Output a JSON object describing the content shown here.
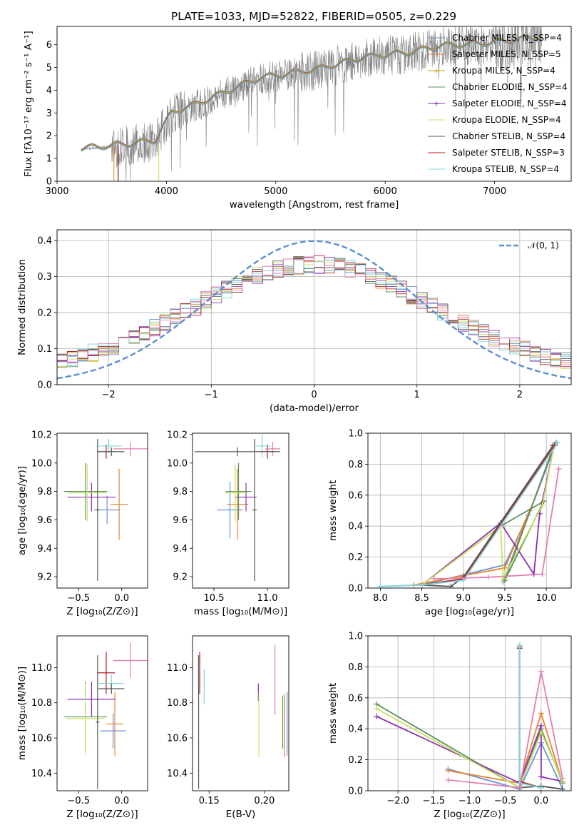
{
  "title": "PLATE=1033, MJD=52822, FIBERID=0505, z=0.229",
  "colors": [
    "#6b93d6",
    "#e9822e",
    "#c8a000",
    "#5b8f5b",
    "#8e2fb0",
    "#c8e060",
    "#555555",
    "#b22020",
    "#7fd8dc",
    "#e37fb0",
    "#808080"
  ],
  "chart_data": [
    {
      "id": "spectrum",
      "type": "line",
      "xlabel": "wavelength [Angstrom, rest frame]",
      "ylabel": "Flux [fλ10⁻¹⁷ erg cm⁻² s⁻¹ A⁻¹]",
      "xlim": [
        3000,
        7700
      ],
      "ylim": [
        0,
        6.8
      ],
      "xticks": [
        "3000",
        "4000",
        "5000",
        "6000",
        "7000"
      ],
      "yticks": [
        "0",
        "1",
        "2",
        "3",
        "4",
        "5",
        "6"
      ],
      "xtick_values": [
        3000,
        4000,
        5000,
        6000,
        7000
      ],
      "ytick_values": [
        0,
        1,
        2,
        3,
        4,
        5,
        6
      ],
      "data_range": [
        3220,
        7430
      ],
      "continuum_x": [
        3220,
        3450,
        3650,
        3900,
        3950,
        4050,
        4250,
        4500,
        4850,
        5000,
        5400,
        5800,
        6200,
        6500,
        7000,
        7400
      ],
      "continuum_y": [
        1.4,
        1.5,
        1.6,
        1.75,
        2.2,
        3.0,
        3.3,
        3.8,
        4.5,
        4.6,
        4.9,
        5.4,
        5.6,
        5.9,
        6.05,
        6.3
      ],
      "legend": [
        "Chabrier MILES, N_SSP=4",
        "Salpeter MILES, N_SSP=5",
        "Kroupa MILES, N_SSP=4",
        "Chabrier ELODIE, N_SSP=4",
        "Salpeter ELODIE, N_SSP=4",
        "Kroupa ELODIE, N_SSP=4",
        "Chabrier STELIB, N_SSP=4",
        "Salpeter STELIB, N_SSP=3",
        "Kroupa STELIB, N_SSP=4"
      ]
    },
    {
      "id": "residuals",
      "type": "line",
      "xlabel": "(data-model)/error",
      "ylabel": "Normed distribution",
      "xlim": [
        -2.5,
        2.5
      ],
      "ylim": [
        0,
        0.43
      ],
      "xticks": [
        "−2",
        "−1",
        "0",
        "1",
        "2"
      ],
      "xtick_values": [
        -2,
        -1,
        0,
        1,
        2
      ],
      "yticks": [
        "0.0",
        "0.1",
        "0.2",
        "0.3",
        "0.4"
      ],
      "ytick_values": [
        0,
        0.1,
        0.2,
        0.3,
        0.4
      ],
      "bins": {
        "start": -2.5,
        "width": 0.1,
        "count": 50
      },
      "gaussian_legend": "𝒩(0, 1)"
    },
    {
      "id": "age-z",
      "type": "scatter",
      "xlabel": "Z [log₁₀(Z/Z⊙)]",
      "ylabel": "age  [log₁₀(age/yr)]",
      "xlim": [
        -0.75,
        0.3
      ],
      "ylim": [
        9.12,
        10.21
      ],
      "xticks": [
        "−0.5",
        "0.0"
      ],
      "xtick_values": [
        -0.5,
        0
      ],
      "yticks": [
        "9.2",
        "9.4",
        "9.6",
        "9.8",
        "10.0",
        "10.2"
      ],
      "ytick_values": [
        9.2,
        9.4,
        9.6,
        9.8,
        10.0,
        10.2
      ],
      "points": [
        {
          "c": 0,
          "x": -0.17,
          "xe": 0.15,
          "y": 9.67,
          "ye": 0.1
        },
        {
          "c": 1,
          "x": -0.03,
          "xe": 0.1,
          "y": 9.71,
          "ye": 0.25
        },
        {
          "c": 4,
          "x": -0.35,
          "xe": 0.28,
          "y": 9.76,
          "ye": 0.1
        },
        {
          "c": 3,
          "x": -0.42,
          "xe": 0.25,
          "y": 9.8,
          "ye": 0.2
        },
        {
          "c": 5,
          "x": -0.4,
          "xe": 0.22,
          "y": 9.79,
          "ye": 0.2
        },
        {
          "c": 6,
          "x": -0.28,
          "xe": 0.02,
          "y": 9.67,
          "ye": 0.5
        },
        {
          "c": 7,
          "x": -0.18,
          "xe": 0.1,
          "y": 10.08,
          "ye": 0.05
        },
        {
          "c": 8,
          "x": -0.15,
          "xe": 0.15,
          "y": 10.12,
          "ye": 0.05
        },
        {
          "c": 9,
          "x": 0.1,
          "xe": 0.2,
          "y": 10.1,
          "ye": 0.05
        },
        {
          "c": 6,
          "x": -0.12,
          "xe": 0.15,
          "y": 10.08,
          "ye": 0.03
        }
      ]
    },
    {
      "id": "age-mass",
      "type": "scatter",
      "xlabel": "mass [log₁₀(M/M⊙)]",
      "ylabel": "",
      "xlim": [
        10.3,
        11.2
      ],
      "ylim": [
        9.12,
        10.21
      ],
      "xticks": [
        "10.5",
        "11.0"
      ],
      "xtick_values": [
        10.5,
        11.0
      ],
      "yticks": [
        "9.2",
        "9.4",
        "9.6",
        "9.8",
        "10.0",
        "10.2"
      ],
      "ytick_values": [
        9.2,
        9.4,
        9.6,
        9.8,
        10.0,
        10.2
      ],
      "points": [
        {
          "c": 0,
          "x": 10.65,
          "xe": 0.12,
          "y": 9.67,
          "ye": 0.2
        },
        {
          "c": 1,
          "x": 10.72,
          "xe": 0.1,
          "y": 9.71,
          "ye": 0.25
        },
        {
          "c": 4,
          "x": 10.8,
          "xe": 0.1,
          "y": 9.76,
          "ye": 0.1
        },
        {
          "c": 3,
          "x": 10.73,
          "xe": 0.12,
          "y": 9.8,
          "ye": 0.2
        },
        {
          "c": 5,
          "x": 10.7,
          "xe": 0.1,
          "y": 9.79,
          "ye": 0.2
        },
        {
          "c": 6,
          "x": 10.88,
          "xe": 0.02,
          "y": 9.67,
          "ye": 0.5
        },
        {
          "c": 7,
          "x": 11.0,
          "xe": 0.08,
          "y": 10.08,
          "ye": 0.05
        },
        {
          "c": 8,
          "x": 10.95,
          "xe": 0.08,
          "y": 10.12,
          "ye": 0.08
        },
        {
          "c": 9,
          "x": 11.05,
          "xe": 0.07,
          "y": 10.1,
          "ye": 0.05
        },
        {
          "c": 6,
          "x": 10.72,
          "xe": 0.4,
          "y": 10.08,
          "ye": 0.03
        }
      ]
    },
    {
      "id": "weight-age",
      "type": "line",
      "xlabel": "age  [log₁₀(age/yr)]",
      "ylabel": "mass weight",
      "xlim": [
        7.85,
        10.3
      ],
      "ylim": [
        0,
        1.0
      ],
      "xticks": [
        "8.0",
        "8.5",
        "9.0",
        "9.5",
        "10.0"
      ],
      "xtick_values": [
        8,
        8.5,
        9,
        9.5,
        10
      ],
      "yticks": [
        "0.0",
        "0.2",
        "0.4",
        "0.6",
        "0.8",
        "1.0"
      ],
      "ytick_values": [
        0,
        0.2,
        0.4,
        0.6,
        0.8,
        1.0
      ],
      "series": [
        {
          "c": 0,
          "x": [
            8.0,
            8.5,
            9.5,
            9.78,
            9.48,
            10.12
          ],
          "y": [
            0.01,
            0.02,
            0.15,
            0.47,
            0.04,
            0.94
          ]
        },
        {
          "c": 1,
          "x": [
            8.4,
            9.0,
            9.5,
            9.8,
            9.5,
            10.1
          ],
          "y": [
            0.02,
            0.08,
            0.13,
            0.5,
            0.05,
            0.93
          ]
        },
        {
          "c": 3,
          "x": [
            8.5,
            9.45,
            9.97,
            9.5,
            10.1
          ],
          "y": [
            0.02,
            0.4,
            0.56,
            0.05,
            0.93
          ]
        },
        {
          "c": 4,
          "x": [
            8.5,
            9.45,
            9.85,
            9.92,
            10.1
          ],
          "y": [
            0.02,
            0.42,
            0.09,
            0.48,
            0.93
          ]
        },
        {
          "c": 5,
          "x": [
            8.5,
            9.45,
            9.48,
            9.95,
            10.1
          ],
          "y": [
            0.02,
            0.4,
            0.06,
            0.53,
            0.93
          ]
        },
        {
          "c": 6,
          "x": [
            8.5,
            8.85,
            9.0,
            10.08
          ],
          "y": [
            0.02,
            0.01,
            0.07,
            0.92
          ]
        },
        {
          "c": 7,
          "x": [
            8.5,
            9.0,
            10.1
          ],
          "y": [
            0.02,
            0.06,
            0.92
          ]
        },
        {
          "c": 8,
          "x": [
            8.0,
            8.5,
            9.0,
            10.14
          ],
          "y": [
            0.01,
            0.02,
            0.05,
            0.94
          ]
        },
        {
          "c": 9,
          "x": [
            8.65,
            9.3,
            9.95,
            10.15
          ],
          "y": [
            0.06,
            0.07,
            0.09,
            0.77
          ]
        }
      ]
    },
    {
      "id": "mass-z",
      "type": "scatter",
      "xlabel": "Z [log₁₀(Z/Z⊙)]",
      "ylabel": "mass [log₁₀(M/M⊙)]",
      "xlim": [
        -0.75,
        0.3
      ],
      "ylim": [
        10.3,
        11.18
      ],
      "xticks": [
        "−0.5",
        "0.0"
      ],
      "xtick_values": [
        -0.5,
        0
      ],
      "yticks": [
        "10.4",
        "10.6",
        "10.8",
        "11.0"
      ],
      "ytick_values": [
        10.4,
        10.6,
        10.8,
        11.0
      ],
      "points": [
        {
          "c": 0,
          "x": -0.1,
          "xe": 0.15,
          "y": 10.64,
          "ye": 0.1
        },
        {
          "c": 1,
          "x": -0.08,
          "xe": 0.1,
          "y": 10.68,
          "ye": 0.18
        },
        {
          "c": 4,
          "x": -0.35,
          "xe": 0.28,
          "y": 10.82,
          "ye": 0.1
        },
        {
          "c": 3,
          "x": -0.42,
          "xe": 0.25,
          "y": 10.72,
          "ye": 0.2
        },
        {
          "c": 5,
          "x": -0.42,
          "xe": 0.22,
          "y": 10.71,
          "ye": 0.2
        },
        {
          "c": 6,
          "x": -0.28,
          "xe": 0.02,
          "y": 10.69,
          "ye": 0.38
        },
        {
          "c": 7,
          "x": -0.18,
          "xe": 0.1,
          "y": 10.97,
          "ye": 0.12
        },
        {
          "c": 8,
          "x": -0.12,
          "xe": 0.15,
          "y": 10.91,
          "ye": 0.05
        },
        {
          "c": 9,
          "x": 0.1,
          "xe": 0.2,
          "y": 11.04,
          "ye": 0.1
        },
        {
          "c": 6,
          "x": -0.12,
          "xe": 0.15,
          "y": 10.88,
          "ye": 0.03
        }
      ]
    },
    {
      "id": "mass-ebv",
      "type": "scatter",
      "xlabel": "E(B-V)",
      "ylabel": "",
      "xlim": [
        0.135,
        0.222
      ],
      "ylim": [
        10.3,
        11.18
      ],
      "xticks": [
        "0.15",
        "0.20"
      ],
      "xtick_values": [
        0.15,
        0.2
      ],
      "yticks": [
        "10.4",
        "10.6",
        "10.8",
        "11.0"
      ],
      "ytick_values": [
        10.4,
        10.6,
        10.8,
        11.0
      ],
      "points": [
        {
          "c": 6,
          "x": 0.1405,
          "y": 10.69,
          "ye": 0.38
        },
        {
          "c": 7,
          "x": 0.1415,
          "y": 10.97,
          "ye": 0.12
        },
        {
          "c": 8,
          "x": 0.1455,
          "y": 10.89,
          "ye": 0.1
        },
        {
          "c": 4,
          "x": 0.1945,
          "y": 10.86,
          "ye": 0.05
        },
        {
          "c": 5,
          "x": 0.195,
          "y": 10.67,
          "ye": 0.18
        },
        {
          "c": 9,
          "x": 0.2095,
          "y": 10.93,
          "ye": 0.2
        },
        {
          "c": 3,
          "x": 0.2165,
          "y": 10.69,
          "ye": 0.15
        },
        {
          "c": 1,
          "x": 0.218,
          "y": 10.67,
          "ye": 0.18
        },
        {
          "c": 0,
          "x": 0.2205,
          "y": 10.68,
          "ye": 0.18
        }
      ]
    },
    {
      "id": "weight-z",
      "type": "line",
      "xlabel": "Z [log₁₀(Z/Z⊙)]",
      "ylabel": "mass weight",
      "xlim": [
        -2.42,
        0.42
      ],
      "ylim": [
        0,
        1.0
      ],
      "xticks": [
        "−2.0",
        "−1.5",
        "−1.0",
        "−0.5",
        "0.0"
      ],
      "xtick_values": [
        -2,
        -1.5,
        -1,
        -0.5,
        0
      ],
      "yticks": [
        "0.0",
        "0.2",
        "0.4",
        "0.6",
        "0.8",
        "1.0"
      ],
      "ytick_values": [
        0,
        0.2,
        0.4,
        0.6,
        0.8,
        1.0
      ],
      "series": [
        {
          "c": 0,
          "x": [
            -1.3,
            -0.3,
            0.0,
            0.3
          ],
          "y": [
            0.14,
            0.01,
            0.31,
            0.01
          ]
        },
        {
          "c": 1,
          "x": [
            -1.3,
            -0.3,
            0.0,
            0.3
          ],
          "y": [
            0.13,
            0.05,
            0.5,
            0.05
          ]
        },
        {
          "c": 3,
          "x": [
            -2.3,
            -0.3,
            0.0,
            0.3
          ],
          "y": [
            0.56,
            0.02,
            0.4,
            0.05
          ]
        },
        {
          "c": 4,
          "x": [
            -2.3,
            -0.3,
            0.0,
            0.0,
            0.3
          ],
          "y": [
            0.48,
            0.05,
            0.42,
            0.09,
            0.06
          ]
        },
        {
          "c": 5,
          "x": [
            -2.3,
            -0.3,
            0.0,
            0.3
          ],
          "y": [
            0.53,
            0.02,
            0.38,
            0.06
          ]
        },
        {
          "c": 6,
          "x": [
            -0.3,
            -0.3,
            0.0,
            0.3
          ],
          "y": [
            0.92,
            0.02,
            0.03,
            0.01
          ]
        },
        {
          "c": 7,
          "x": [
            -0.3,
            -0.3,
            0.0
          ],
          "y": [
            0.93,
            0.06,
            0.02
          ]
        },
        {
          "c": 8,
          "x": [
            -0.3,
            -0.3,
            0.0
          ],
          "y": [
            0.94,
            0.05,
            0.02
          ]
        },
        {
          "c": 9,
          "x": [
            -1.3,
            -0.3,
            0.0,
            0.3
          ],
          "y": [
            0.07,
            0.02,
            0.77,
            0.08
          ]
        }
      ]
    }
  ]
}
